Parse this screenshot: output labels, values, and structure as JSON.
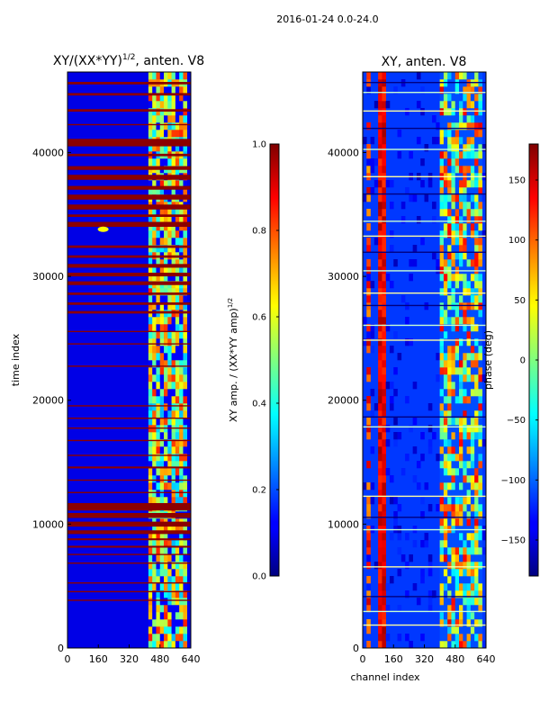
{
  "figure": {
    "suptitle": "2016-01-24 0.0-24.0"
  },
  "chart_data": [
    {
      "type": "heatmap",
      "title": "XY/(XX*YY)^1/2, anten. V8",
      "title_main": "XY/(XX*YY)",
      "title_exp": "1/2",
      "title_tail": ", anten. V8",
      "xlabel": "",
      "ylabel": "time index",
      "xlim": [
        0,
        640
      ],
      "ylim": [
        0,
        46500
      ],
      "xticks": [
        0,
        160,
        320,
        480,
        640
      ],
      "yticks": [
        0,
        10000,
        20000,
        30000,
        40000
      ],
      "xtick_labels": [
        "0",
        "160",
        "320",
        "480",
        "640"
      ],
      "ytick_labels": [
        "0",
        "10000",
        "20000",
        "30000",
        "40000"
      ],
      "colormap": "jet",
      "colorbar": {
        "label": "XY amp. / (XX*YY amp)^1/2",
        "label_main": "XY amp. / (XX*YY amp)",
        "label_exp": "1/2",
        "range": [
          0.0,
          1.0
        ],
        "ticks": [
          0.0,
          0.2,
          0.4,
          0.6,
          0.8,
          1.0
        ],
        "tick_labels": [
          "0.0",
          "0.2",
          "0.4",
          "0.6",
          "0.8",
          "1.0"
        ]
      },
      "description": "Normalized XY amplitude per channel vs time index; background near 0.05 (dark blue), strong horizontal streaks near 1.0 at many time indices (e.g. 9000-11500, 27000-31000, 34000-41000), elevated values 0.3-0.8 in channels ~410-620.",
      "streak_rows": [
        [
          3800,
          3900
        ],
        [
          4500,
          4600
        ],
        [
          5200,
          5300
        ],
        [
          6800,
          6900
        ],
        [
          7500,
          7600
        ],
        [
          8100,
          8250
        ],
        [
          8700,
          8850
        ],
        [
          9200,
          9500
        ],
        [
          9800,
          10200
        ],
        [
          10500,
          10900
        ],
        [
          11100,
          11700
        ],
        [
          12500,
          12600
        ],
        [
          13500,
          13600
        ],
        [
          14500,
          14650
        ],
        [
          15500,
          15600
        ],
        [
          16700,
          16800
        ],
        [
          17700,
          17800
        ],
        [
          18500,
          18600
        ],
        [
          19500,
          19600
        ],
        [
          22700,
          22800
        ],
        [
          24500,
          24600
        ],
        [
          25500,
          25600
        ],
        [
          27000,
          27200
        ],
        [
          27700,
          27900
        ],
        [
          28500,
          28700
        ],
        [
          29300,
          29600
        ],
        [
          30000,
          30300
        ],
        [
          30700,
          31000
        ],
        [
          31500,
          31700
        ],
        [
          32300,
          32500
        ],
        [
          34000,
          34400
        ],
        [
          34800,
          35000
        ],
        [
          35400,
          35800
        ],
        [
          36200,
          36600
        ],
        [
          37000,
          37300
        ],
        [
          37800,
          38200
        ],
        [
          38600,
          38900
        ],
        [
          39700,
          39900
        ],
        [
          40500,
          41100
        ],
        [
          42200,
          42300
        ],
        [
          43300,
          43500
        ],
        [
          44600,
          44800
        ],
        [
          45500,
          45700
        ]
      ]
    },
    {
      "type": "heatmap",
      "title": "XY, anten. V8",
      "xlabel": "channel index",
      "ylabel": "",
      "xlim": [
        0,
        640
      ],
      "ylim": [
        0,
        46500
      ],
      "xticks": [
        0,
        160,
        320,
        480,
        640
      ],
      "yticks": [
        0,
        10000,
        20000,
        30000,
        40000
      ],
      "xtick_labels": [
        "0",
        "160",
        "320",
        "480",
        "640"
      ],
      "ytick_labels": [
        "0",
        "10000",
        "20000",
        "30000",
        "40000"
      ],
      "colormap": "jet",
      "colorbar": {
        "label": "phase (deg)",
        "range": [
          -180,
          180
        ],
        "ticks": [
          -150,
          -100,
          -50,
          0,
          50,
          100,
          150
        ],
        "tick_labels": [
          "−150",
          "−100",
          "−50",
          "0",
          "50",
          "100",
          "150"
        ]
      },
      "description": "XY phase per channel vs time index; mostly around -130 to -160 deg (blue) with red vertical bands near channels 100 and 420, and bright horizontal streaks.",
      "streak_rows": [
        [
          1800,
          1900
        ],
        [
          2900,
          3000
        ],
        [
          4100,
          4200
        ],
        [
          6500,
          6600
        ],
        [
          9500,
          9600
        ],
        [
          10500,
          10600
        ],
        [
          12200,
          12300
        ],
        [
          17800,
          17900
        ],
        [
          18600,
          18700
        ],
        [
          24800,
          24900
        ],
        [
          26000,
          26100
        ],
        [
          27600,
          27700
        ],
        [
          28600,
          28700
        ],
        [
          30400,
          30500
        ],
        [
          31900,
          32000
        ],
        [
          33200,
          33300
        ],
        [
          34400,
          34500
        ],
        [
          36600,
          36700
        ],
        [
          38000,
          38100
        ],
        [
          40200,
          40300
        ],
        [
          41900,
          42000
        ],
        [
          43300,
          43400
        ],
        [
          44800,
          44900
        ],
        [
          45600,
          45700
        ]
      ]
    }
  ]
}
